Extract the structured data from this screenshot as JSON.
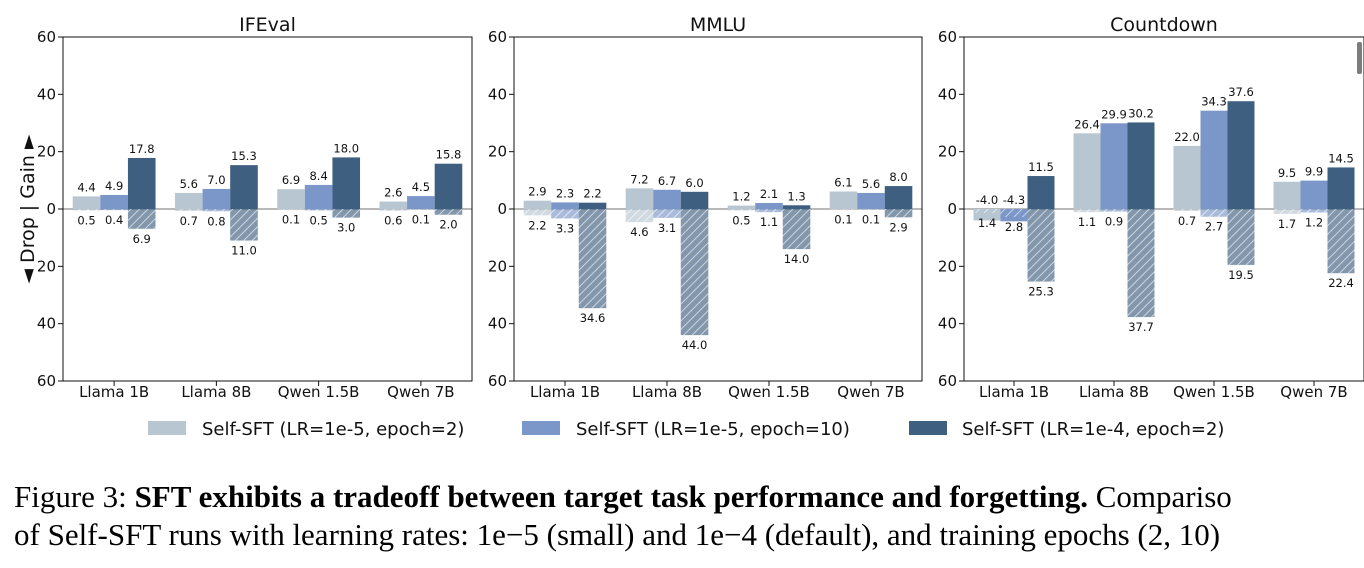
{
  "chart_data": {
    "type": "bar",
    "title": "",
    "ylabel": "◄ Drop | Gain ►",
    "ylim": [
      -60,
      60
    ],
    "yticks": [
      "60",
      "40",
      "20",
      "0",
      "20",
      "40",
      "60"
    ],
    "categories": [
      "Llama 1B",
      "Llama 8B",
      "Qwen 1.5B",
      "Qwen 7B"
    ],
    "colors": [
      "#b8c6d1",
      "#7b96c8",
      "#3f5f80"
    ],
    "series_names": [
      "Self-SFT (LR=1e-5, epoch=2)",
      "Self-SFT (LR=1e-5, epoch=10)",
      "Self-SFT (LR=1e-4, epoch=2)"
    ],
    "panels": [
      {
        "title": "IFEval",
        "gain": [
          [
            4.4,
            5.6,
            6.9,
            2.6
          ],
          [
            4.9,
            7.0,
            8.4,
            4.5
          ],
          [
            17.8,
            15.3,
            18.0,
            15.8
          ]
        ],
        "drop": [
          [
            0.5,
            0.7,
            0.1,
            0.6
          ],
          [
            0.4,
            0.8,
            0.5,
            0.1
          ],
          [
            6.9,
            11.0,
            3.0,
            2.0
          ]
        ],
        "gain_labels": [
          [
            "4.4",
            "5.6",
            "6.9",
            "2.6"
          ],
          [
            "4.9",
            "7.0",
            "8.4",
            "4.5"
          ],
          [
            "17.8",
            "15.3",
            "18.0",
            "15.8"
          ]
        ],
        "drop_labels": [
          [
            "0.5",
            "0.7",
            "0.1",
            "0.6"
          ],
          [
            "0.4",
            "0.8",
            "0.5",
            "0.1"
          ],
          [
            "6.9",
            "11.0",
            "3.0",
            "2.0"
          ]
        ]
      },
      {
        "title": "MMLU",
        "gain": [
          [
            2.9,
            7.2,
            1.2,
            6.1
          ],
          [
            2.3,
            6.7,
            2.1,
            5.6
          ],
          [
            2.2,
            6.0,
            1.3,
            8.0
          ]
        ],
        "drop": [
          [
            2.2,
            4.6,
            0.5,
            0.1
          ],
          [
            3.3,
            3.1,
            1.1,
            0.1
          ],
          [
            34.6,
            44.0,
            14.0,
            2.9
          ]
        ],
        "gain_labels": [
          [
            "2.9",
            "7.2",
            "1.2",
            "6.1"
          ],
          [
            "2.3",
            "6.7",
            "2.1",
            "5.6"
          ],
          [
            "2.2",
            "6.0",
            "1.3",
            "8.0"
          ]
        ],
        "drop_labels": [
          [
            "2.2",
            "4.6",
            "0.5",
            "0.1"
          ],
          [
            "3.3",
            "3.1",
            "1.1",
            "0.1"
          ],
          [
            "34.6",
            "44.0",
            "14.0",
            "2.9"
          ]
        ]
      },
      {
        "title": "Countdown",
        "gain": [
          [
            -4.0,
            26.4,
            22.0,
            9.5
          ],
          [
            -4.3,
            29.9,
            34.3,
            9.9
          ],
          [
            11.5,
            30.2,
            37.6,
            14.5
          ]
        ],
        "drop": [
          [
            1.4,
            1.1,
            0.7,
            1.7
          ],
          [
            2.8,
            0.9,
            2.7,
            1.2
          ],
          [
            25.3,
            37.7,
            19.5,
            22.4
          ]
        ],
        "gain_labels": [
          [
            "-4.0",
            "26.4",
            "22.0",
            "9.5"
          ],
          [
            "-4.3",
            "29.9",
            "34.3",
            "9.9"
          ],
          [
            "11.5",
            "30.2",
            "37.6",
            "14.5"
          ]
        ],
        "drop_labels": [
          [
            "1.4",
            "1.1",
            "0.7",
            "1.7"
          ],
          [
            "2.8",
            "0.9",
            "2.7",
            "1.2"
          ],
          [
            "25.3",
            "37.7",
            "19.5",
            "22.4"
          ]
        ]
      }
    ],
    "legend_placement": "bottom-center"
  },
  "caption": {
    "label": "Figure 3: ",
    "bold": "SFT exhibits a tradeoff between target task performance and forgetting.",
    "line1_rest": " Compariso",
    "line2": "of Self-SFT runs with learning rates: 1e−5 (small) and 1e−4 (default), and training epochs (2, 10)"
  }
}
